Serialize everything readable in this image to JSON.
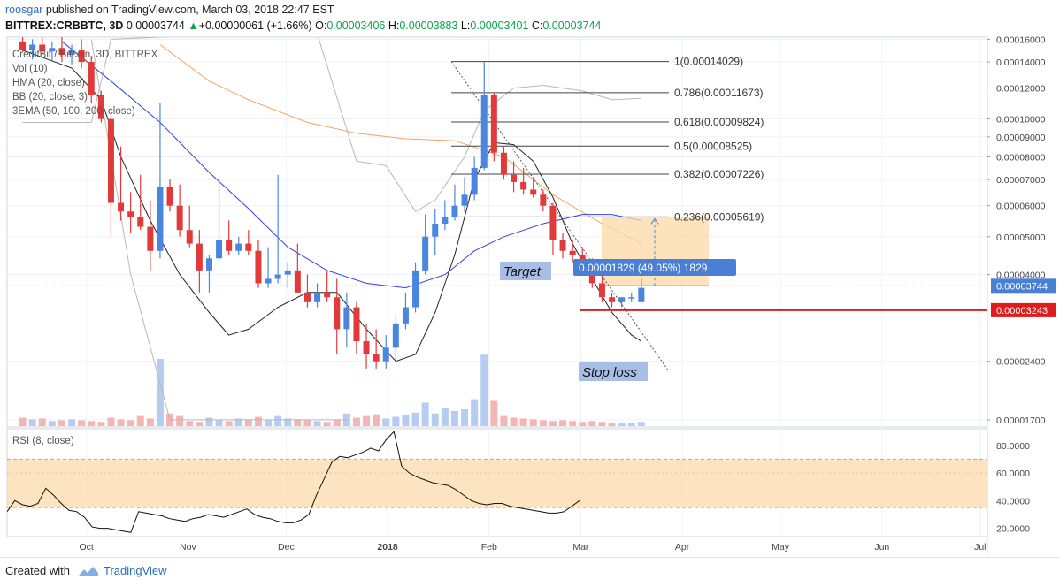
{
  "header": {
    "author": "roosgar",
    "published_text": "published on TradingView.com, March 03, 2018 22:47 EST",
    "symbol": "BITTREX:CRBBTC, 3D",
    "last": "0.00003744",
    "change_arrow": "▲",
    "change": "+0.00000061 (+1.66%)",
    "o_label": "O:",
    "o_val": "0.00003406",
    "h_label": "H:",
    "h_val": "0.00003883",
    "l_label": "L:",
    "l_val": "0.00003401",
    "c_label": "C:",
    "c_val": "0.00003744"
  },
  "indicators": {
    "title": "CreditBit / Bitcoin, 3D, BITTREX",
    "items": [
      "Vol (10)",
      "HMA (20, close)",
      "BB (20, close, 3)",
      "3EMA (50, 100, 200, close)"
    ]
  },
  "colors": {
    "bull": "#4a86e0",
    "bear": "#e03a3a",
    "vol_bull": "#a9c4f0",
    "vol_bear": "#f4a8a8",
    "hma": "#222222",
    "bb": "#b8b8b8",
    "ema_blue": "#3342e6",
    "ema_orange": "#f4a460",
    "zone": "#fbd9a6",
    "stop": "#e01b1b",
    "accent": "#4a7fd6"
  },
  "annotations": {
    "target_label": "Target",
    "stop_label": "Stop loss",
    "measure_label": "0.00001829 (49.05%) 1829",
    "last_price_tag": "0.00003744",
    "stop_price_tag": "0.00003243"
  },
  "footer": {
    "created": "Created with",
    "brand": "TradingView"
  },
  "chart_data": [
    {
      "type": "candlestick",
      "title": "CreditBit / Bitcoin, 3D, BITTREX",
      "yscale": "log",
      "ylim": [
        1.63e-05,
        0.000162
      ],
      "y_ticks": [
        "0.00016000",
        "0.00014000",
        "0.00012000",
        "0.00010000",
        "0.00009000",
        "0.00008000",
        "0.00007000",
        "0.00006000",
        "0.00005000",
        "0.00004000",
        "0.00002400",
        "0.00001700"
      ],
      "y_tick_values": [
        0.00016,
        0.00014,
        0.00012,
        0.0001,
        9e-05,
        8e-05,
        7e-05,
        6e-05,
        5e-05,
        4e-05,
        2.4e-05,
        1.7e-05
      ],
      "x_ticks": [
        "Oct",
        "Nov",
        "Dec",
        "2018",
        "Feb",
        "Mar",
        "Apr",
        "May",
        "Jun",
        "Jul"
      ],
      "x_tick_days": [
        21,
        52,
        82,
        113,
        144,
        172,
        203,
        233,
        264,
        294
      ],
      "start_date": "2017-09-10",
      "period_days": 3,
      "candles": [
        [
          1,
          0.000158,
          0.000162,
          0.000148,
          0.00015
        ],
        [
          2,
          0.00015,
          0.00016,
          0.000142,
          0.000155
        ],
        [
          3,
          0.000155,
          0.000162,
          0.000146,
          0.000149
        ],
        [
          4,
          0.000149,
          0.000158,
          0.000141,
          0.000152
        ],
        [
          5,
          0.000152,
          0.000162,
          0.00014,
          0.000146
        ],
        [
          6,
          0.000146,
          0.000155,
          0.000138,
          0.00015
        ],
        [
          7,
          0.00015,
          0.00016,
          0.000135,
          0.00014
        ],
        [
          8,
          0.00014,
          0.000145,
          0.00011,
          0.000115
        ],
        [
          9,
          0.000115,
          0.000118,
          9.8e-05,
          0.0001
        ],
        [
          10,
          0.0001,
          0.000103,
          5e-05,
          6.1e-05
        ],
        [
          11,
          6.1e-05,
          8.5e-05,
          5.5e-05,
          5.8e-05
        ],
        [
          12,
          5.8e-05,
          6.5e-05,
          5.1e-05,
          5.6e-05
        ],
        [
          13,
          5.6e-05,
          7.2e-05,
          5.2e-05,
          5.3e-05
        ],
        [
          14,
          5.3e-05,
          6.2e-05,
          4.1e-05,
          4.6e-05
        ],
        [
          15,
          4.6e-05,
          0.00011,
          4.4e-05,
          6.7e-05
        ],
        [
          16,
          6.7e-05,
          7e-05,
          5.8e-05,
          6e-05
        ],
        [
          17,
          6e-05,
          6.8e-05,
          5e-05,
          5.2e-05
        ],
        [
          18,
          5.2e-05,
          6e-05,
          4.7e-05,
          4.8e-05
        ],
        [
          19,
          4.8e-05,
          5.2e-05,
          3.6e-05,
          4.1e-05
        ],
        [
          20,
          4.1e-05,
          4.5e-05,
          3.6e-05,
          4.4e-05
        ],
        [
          21,
          4.4e-05,
          7.1e-05,
          4.3e-05,
          4.9e-05
        ],
        [
          22,
          4.9e-05,
          5.5e-05,
          4.5e-05,
          4.6e-05
        ],
        [
          23,
          4.6e-05,
          5e-05,
          4.5e-05,
          4.8e-05
        ],
        [
          24,
          4.8e-05,
          5.2e-05,
          4.5e-05,
          4.6e-05
        ],
        [
          25,
          4.6e-05,
          4.9e-05,
          3.7e-05,
          3.8e-05
        ],
        [
          26,
          3.8e-05,
          4.7e-05,
          3.7e-05,
          3.9e-05
        ],
        [
          27,
          3.9e-05,
          7.2e-05,
          3.8e-05,
          4e-05
        ],
        [
          28,
          4e-05,
          4.3e-05,
          3.7e-05,
          4.1e-05
        ],
        [
          29,
          4.1e-05,
          4.8e-05,
          3.6e-05,
          3.6e-05
        ],
        [
          30,
          3.6e-05,
          4e-05,
          3.3e-05,
          3.4e-05
        ],
        [
          31,
          3.4e-05,
          3.8e-05,
          3.3e-05,
          3.6e-05
        ],
        [
          32,
          3.6e-05,
          4.1e-05,
          3.4e-05,
          3.5e-05
        ],
        [
          33,
          3.5e-05,
          3.9e-05,
          2.5e-05,
          2.9e-05
        ],
        [
          34,
          2.9e-05,
          3.6e-05,
          2.6e-05,
          3.3e-05
        ],
        [
          35,
          3.3e-05,
          3.4e-05,
          2.5e-05,
          2.7e-05
        ],
        [
          36,
          2.7e-05,
          3e-05,
          2.3e-05,
          2.5e-05
        ],
        [
          37,
          2.5e-05,
          2.9e-05,
          2.3e-05,
          2.4e-05
        ],
        [
          38,
          2.4e-05,
          2.8e-05,
          2.3e-05,
          2.6e-05
        ],
        [
          39,
          2.6e-05,
          3.1e-05,
          2.4e-05,
          3e-05
        ],
        [
          40,
          3e-05,
          3.6e-05,
          2.9e-05,
          3.3e-05
        ],
        [
          41,
          3.3e-05,
          4.3e-05,
          3.2e-05,
          4.1e-05
        ],
        [
          42,
          4.1e-05,
          5.7e-05,
          4e-05,
          5e-05
        ],
        [
          43,
          5e-05,
          5.9e-05,
          4.5e-05,
          5.4e-05
        ],
        [
          44,
          5.4e-05,
          6.2e-05,
          5.2e-05,
          5.6e-05
        ],
        [
          45,
          5.6e-05,
          6.8e-05,
          5.5e-05,
          6e-05
        ],
        [
          46,
          6e-05,
          7.1e-05,
          5.8e-05,
          6.4e-05
        ],
        [
          47,
          6.4e-05,
          8e-05,
          6.2e-05,
          7.5e-05
        ],
        [
          48,
          7.5e-05,
          0.00014,
          7.4e-05,
          0.000115
        ],
        [
          49,
          0.000115,
          0.000117,
          7.8e-05,
          8.2e-05
        ],
        [
          50,
          8.2e-05,
          8.5e-05,
          7e-05,
          7.2e-05
        ],
        [
          51,
          7.2e-05,
          7.8e-05,
          6.5e-05,
          6.9e-05
        ],
        [
          52,
          6.9e-05,
          7.5e-05,
          6.4e-05,
          6.6e-05
        ],
        [
          53,
          6.6e-05,
          7.1e-05,
          6.3e-05,
          6.4e-05
        ],
        [
          54,
          6.4e-05,
          6.6e-05,
          5.8e-05,
          6e-05
        ],
        [
          55,
          6e-05,
          6.1e-05,
          4.5e-05,
          4.9e-05
        ],
        [
          56,
          4.9e-05,
          5.1e-05,
          4.4e-05,
          4.6e-05
        ],
        [
          57,
          4.6e-05,
          4.9e-05,
          4.3e-05,
          4.5e-05
        ],
        [
          58,
          4.5e-05,
          4.7e-05,
          4.2e-05,
          4.3e-05
        ],
        [
          59,
          4.3e-05,
          4.4e-05,
          3.7e-05,
          3.8e-05
        ],
        [
          60,
          3.8e-05,
          4e-05,
          3.4e-05,
          3.5e-05
        ],
        [
          61,
          3.5e-05,
          3.6e-05,
          3.3e-05,
          3.4e-05
        ],
        [
          62,
          3.4e-05,
          3.5e-05,
          3.3e-05,
          3.5e-05
        ],
        [
          63,
          3.5e-05,
          3.6e-05,
          3.4e-05,
          3.5e-05
        ],
        [
          64,
          3.4e-05,
          3.9e-05,
          3.4e-05,
          3.7e-05
        ]
      ],
      "volume_relative": [
        0.1,
        0.08,
        0.09,
        0.06,
        0.07,
        0.08,
        0.07,
        0.06,
        0.05,
        0.1,
        0.08,
        0.07,
        0.12,
        0.09,
        0.8,
        0.15,
        0.12,
        0.06,
        0.05,
        0.1,
        0.07,
        0.06,
        0.09,
        0.08,
        0.11,
        0.07,
        0.12,
        0.09,
        0.08,
        0.07,
        0.06,
        0.05,
        0.08,
        0.15,
        0.1,
        0.12,
        0.14,
        0.09,
        0.11,
        0.13,
        0.16,
        0.28,
        0.15,
        0.22,
        0.18,
        0.2,
        0.32,
        0.85,
        0.3,
        0.12,
        0.1,
        0.09,
        0.08,
        0.07,
        0.06,
        0.07,
        0.06,
        0.05,
        0.06,
        0.05,
        0.04,
        0.03,
        0.04,
        0.05
      ],
      "hma": [
        [
          1,
          0.00015
        ],
        [
          6,
          0.000135
        ],
        [
          9,
          0.000112
        ],
        [
          11,
          8e-05
        ],
        [
          14,
          5.5e-05
        ],
        [
          17,
          4e-05
        ],
        [
          20,
          3.2e-05
        ],
        [
          22,
          2.8e-05
        ],
        [
          24,
          2.9e-05
        ],
        [
          27,
          3.3e-05
        ],
        [
          30,
          3.6e-05
        ],
        [
          33,
          3.6e-05
        ],
        [
          36,
          2.9e-05
        ],
        [
          39,
          2.4e-05
        ],
        [
          41,
          2.5e-05
        ],
        [
          43,
          3.2e-05
        ],
        [
          45,
          4.5e-05
        ],
        [
          47,
          7e-05
        ],
        [
          49,
          8.7e-05
        ],
        [
          51,
          8.6e-05
        ],
        [
          53,
          7.8e-05
        ],
        [
          55,
          6.3e-05
        ],
        [
          57,
          4.8e-05
        ],
        [
          59,
          3.9e-05
        ],
        [
          61,
          3.2e-05
        ],
        [
          63,
          2.8e-05
        ],
        [
          64,
          2.7e-05
        ]
      ],
      "bb_upper": [
        [
          1,
          9.8e-05
        ],
        [
          8,
          9.8e-05
        ],
        [
          10,
          0.00016
        ],
        [
          22,
          0.000165
        ],
        [
          31,
          0.000165
        ],
        [
          35,
          7.8e-05
        ],
        [
          38,
          7.6e-05
        ],
        [
          41,
          5.8e-05
        ],
        [
          43,
          6.2e-05
        ],
        [
          46,
          8e-05
        ],
        [
          48,
          0.000105
        ],
        [
          51,
          0.00012
        ],
        [
          54,
          0.000122
        ],
        [
          58,
          0.000118
        ],
        [
          61,
          0.000112
        ],
        [
          64,
          0.000113
        ]
      ],
      "bb_lower": [
        [
          8,
          0.00016
        ],
        [
          12,
          4e-05
        ],
        [
          16,
          1.7e-05
        ],
        [
          20,
          1.7e-05
        ],
        [
          26,
          1.7e-05
        ],
        [
          30,
          1.7e-05
        ],
        [
          34,
          1.7e-05
        ]
      ],
      "ema_blue": [
        [
          5,
          0.000158
        ],
        [
          10,
          0.000125
        ],
        [
          15,
          9.8e-05
        ],
        [
          20,
          7.3e-05
        ],
        [
          24,
          5.9e-05
        ],
        [
          28,
          4.7e-05
        ],
        [
          32,
          4.1e-05
        ],
        [
          36,
          3.8e-05
        ],
        [
          40,
          3.7e-05
        ],
        [
          44,
          4e-05
        ],
        [
          47,
          4.6e-05
        ],
        [
          50,
          5e-05
        ],
        [
          54,
          5.4e-05
        ],
        [
          58,
          5.7e-05
        ],
        [
          61,
          5.7e-05
        ],
        [
          64,
          5.5e-05
        ]
      ],
      "ema_orange": [
        [
          15,
          0.000155
        ],
        [
          20,
          0.000125
        ],
        [
          24,
          0.000112
        ],
        [
          30,
          9.8e-05
        ],
        [
          35,
          9.2e-05
        ],
        [
          40,
          8.9e-05
        ],
        [
          45,
          8.8e-05
        ],
        [
          50,
          8e-05
        ],
        [
          55,
          6.4e-05
        ],
        [
          60,
          5.4e-05
        ],
        [
          64,
          4.8e-05
        ]
      ],
      "fibonacci": {
        "levels": [
          {
            "ratio": "1",
            "price": 0.00014029,
            "label": "1(0.00014029)"
          },
          {
            "ratio": "0.786",
            "price": 0.00011673,
            "label": "0.786(0.00011673)"
          },
          {
            "ratio": "0.618",
            "price": 9.824e-05,
            "label": "0.618(0.00009824)"
          },
          {
            "ratio": "0.5",
            "price": 8.525e-05,
            "label": "0.5(0.00008525)"
          },
          {
            "ratio": "0.382",
            "price": 7.226e-05,
            "label": "0.382(0.00007226)"
          },
          {
            "ratio": "0.236",
            "price": 5.619e-05,
            "label": "0.236(0.00005619)"
          }
        ]
      },
      "target_price": 5.619e-05,
      "entry_price": 3.744e-05,
      "stop_price": 3.243e-05
    },
    {
      "type": "line",
      "title": "RSI (8, close)",
      "ylim": [
        14,
        92
      ],
      "y_ticks": [
        "80.0000",
        "60.0000",
        "40.0000",
        "20.0000"
      ],
      "y_tick_values": [
        80,
        60,
        40,
        20
      ],
      "band": [
        35,
        70
      ],
      "midline": 60,
      "values": [
        32,
        40,
        37,
        36,
        38,
        49,
        44,
        38,
        33,
        32,
        28,
        21,
        20,
        20,
        19,
        18,
        17,
        32,
        31,
        30,
        29,
        27,
        26,
        25,
        27,
        28,
        30,
        29,
        28,
        30,
        32,
        34,
        30,
        28,
        27,
        25,
        24,
        24,
        26,
        30,
        44,
        56,
        68,
        72,
        71,
        73,
        75,
        78,
        76,
        84,
        90,
        65,
        60,
        57,
        55,
        53,
        52,
        51,
        48,
        44,
        40,
        38,
        37,
        38,
        38,
        36,
        35,
        34,
        33,
        32,
        31,
        31,
        32,
        36,
        40
      ]
    }
  ]
}
